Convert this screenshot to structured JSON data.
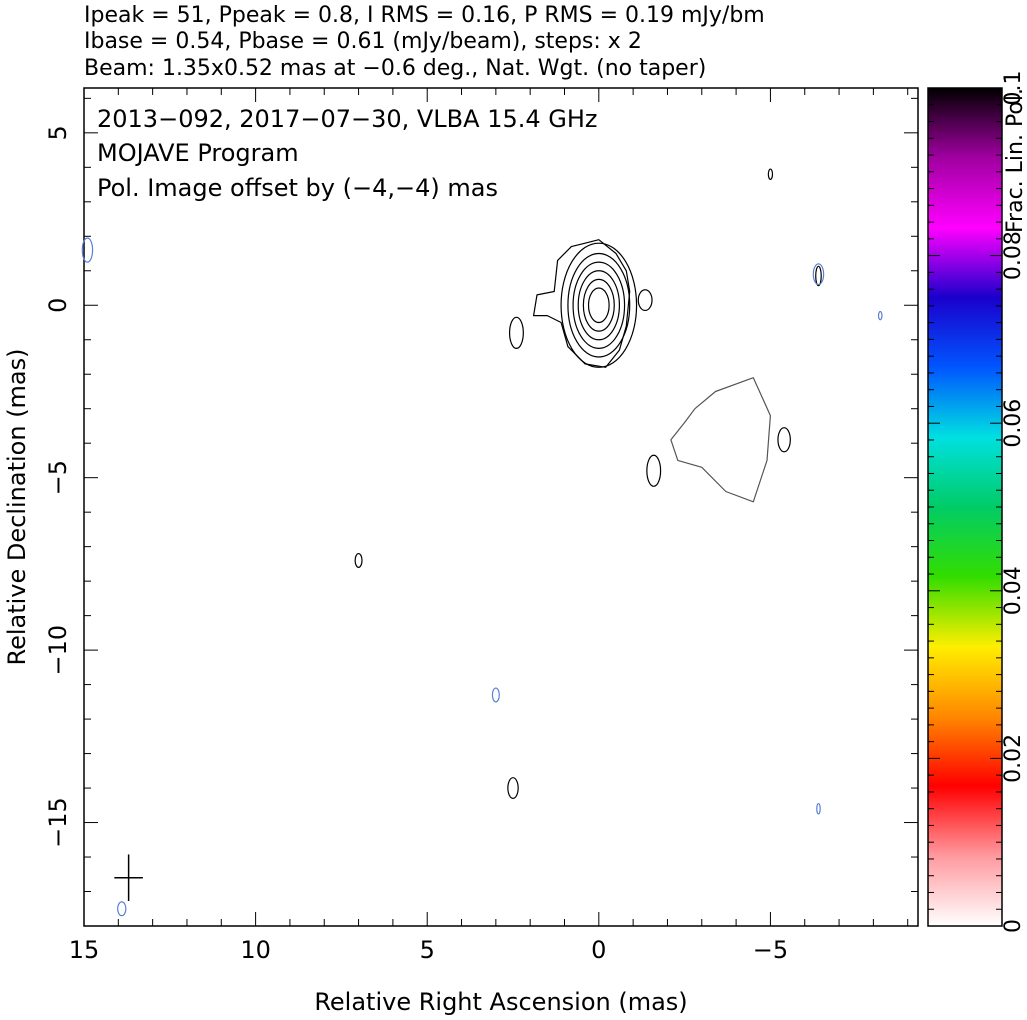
{
  "header": {
    "line1": "Ipeak = 51, Ppeak = 0.8, I RMS = 0.16, P RMS = 0.19 mJy/bm",
    "line2": "Ibase = 0.54, Pbase = 0.61 (mJy/beam), steps: x 2",
    "line3": "Beam: 1.35x0.52 mas at −0.6 deg., Nat. Wgt. (no taper)"
  },
  "annotation": {
    "line1": "2013−092, 2017−07−30, VLBA 15.4 GHz",
    "line2": "MOJAVE Program",
    "line3": "Pol. Image offset by (−4,−4) mas",
    "line3_color": "#5b7fd6"
  },
  "chart_data": {
    "type": "contour",
    "xlabel": "Relative Right Ascension (mas)",
    "ylabel": "Relative Declination (mas)",
    "xlim": [
      15,
      -9.3
    ],
    "ylim": [
      -18,
      6.3
    ],
    "x_ticks": [
      15,
      10,
      5,
      0,
      -5
    ],
    "x_tick_labels": [
      "15",
      "10",
      "5",
      "0",
      "−5"
    ],
    "y_ticks": [
      5,
      0,
      -5,
      -10,
      -15
    ],
    "y_tick_labels": [
      "5",
      "0",
      "−5",
      "−10",
      "−15"
    ],
    "colorbar": {
      "label": "Frac. Lin. Pol.",
      "range": [
        0,
        0.1
      ],
      "ticks": [
        0,
        0.02,
        0.04,
        0.06,
        0.08,
        0.1
      ],
      "tick_labels": [
        "0",
        "0.02",
        "0.04",
        "0.06",
        "0.08",
        "0.1"
      ],
      "colors": [
        "#ffffff",
        "#ff9aa0",
        "#ff0000",
        "#ff8800",
        "#ffee00",
        "#33dd00",
        "#00cc66",
        "#00e0e0",
        "#0055ff",
        "#1a00cc",
        "#ff00ff",
        "#a000a0",
        "#000000"
      ]
    },
    "intensity_contours": {
      "color": "#000000",
      "center": [
        0,
        0
      ],
      "core_levels": [
        {
          "rx": 1.1,
          "ry": 1.8
        },
        {
          "rx": 0.9,
          "ry": 1.5
        },
        {
          "rx": 0.75,
          "ry": 1.25
        },
        {
          "rx": 0.6,
          "ry": 1.0
        },
        {
          "rx": 0.45,
          "ry": 0.75
        },
        {
          "rx": 0.3,
          "ry": 0.5
        }
      ],
      "outer_contour": [
        [
          -0.8,
          1.0
        ],
        [
          -0.9,
          0.4
        ],
        [
          -0.8,
          -0.6
        ],
        [
          -0.6,
          -1.3
        ],
        [
          -0.2,
          -1.8
        ],
        [
          0.4,
          -1.7
        ],
        [
          0.9,
          -1.2
        ],
        [
          1.1,
          -0.5
        ],
        [
          1.5,
          -0.3
        ],
        [
          1.9,
          -0.3
        ],
        [
          1.8,
          0.3
        ],
        [
          1.3,
          0.4
        ],
        [
          1.2,
          1.3
        ],
        [
          0.8,
          1.7
        ],
        [
          0.4,
          1.8
        ],
        [
          0.0,
          1.9
        ],
        [
          -0.5,
          1.5
        ]
      ],
      "jet_contour": [
        [
          -3.4,
          -2.5
        ],
        [
          -4.5,
          -2.1
        ],
        [
          -5.0,
          -3.2
        ],
        [
          -4.9,
          -4.5
        ],
        [
          -4.5,
          -5.7
        ],
        [
          -3.7,
          -5.4
        ],
        [
          -3.0,
          -4.7
        ],
        [
          -2.3,
          -4.5
        ],
        [
          -2.1,
          -3.9
        ],
        [
          -2.5,
          -3.4
        ],
        [
          -2.8,
          -3.0
        ]
      ],
      "small_blobs": [
        {
          "x": 2.4,
          "y": -0.8,
          "rx": 0.2,
          "ry": 0.45
        },
        {
          "x": -1.35,
          "y": 0.15,
          "rx": 0.2,
          "ry": 0.3
        },
        {
          "x": -5.4,
          "y": -3.9,
          "rx": 0.18,
          "ry": 0.35
        },
        {
          "x": -1.6,
          "y": -4.8,
          "rx": 0.2,
          "ry": 0.45
        },
        {
          "x": 7.0,
          "y": -7.4,
          "rx": 0.1,
          "ry": 0.2
        },
        {
          "x": 2.5,
          "y": -14.0,
          "rx": 0.15,
          "ry": 0.3
        },
        {
          "x": -5.0,
          "y": 3.8,
          "rx": 0.06,
          "ry": 0.15
        },
        {
          "x": -6.4,
          "y": 0.85,
          "rx": 0.08,
          "ry": 0.28
        }
      ]
    },
    "polarization_contours": {
      "color": "#5b7fd6",
      "blobs": [
        {
          "x": 3.0,
          "y": -11.3,
          "rx": 0.1,
          "ry": 0.2
        },
        {
          "x": 13.9,
          "y": -17.5,
          "rx": 0.12,
          "ry": 0.2
        },
        {
          "x": -6.4,
          "y": 0.9,
          "rx": 0.15,
          "ry": 0.3
        },
        {
          "x": -8.2,
          "y": -0.3,
          "rx": 0.05,
          "ry": 0.12
        },
        {
          "x": -6.4,
          "y": -14.6,
          "rx": 0.05,
          "ry": 0.15
        },
        {
          "x": 14.9,
          "y": 1.6,
          "rx": 0.15,
          "ry": 0.35
        }
      ]
    },
    "beam_marker": {
      "x": 13.7,
      "y": -16.6,
      "major_mas": 1.35,
      "minor_mas": 0.52
    }
  }
}
